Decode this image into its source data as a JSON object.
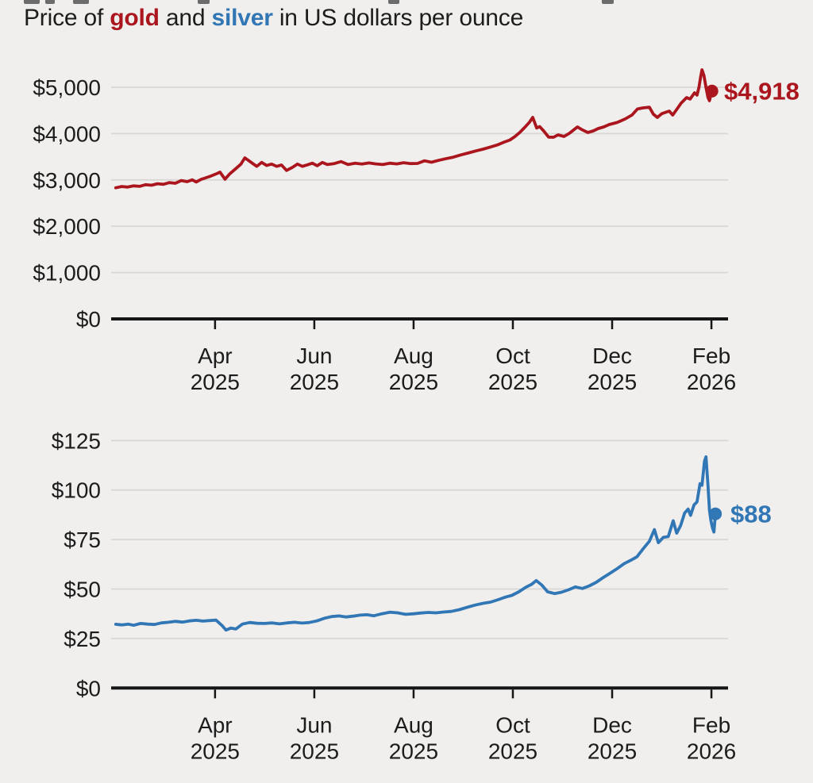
{
  "title": {
    "prefix": "Price of ",
    "gold_word": "gold",
    "connector": " and ",
    "silver_word": "silver",
    "suffix": " in US dollars per ounce"
  },
  "chart_data": [
    {
      "type": "line",
      "name": "gold-price",
      "series_label": "gold",
      "color": "#ab161e",
      "end_label": "$4,918",
      "end_value": 4918,
      "x_unit": "months since Feb 2025",
      "x_range_plotted": [
        "Feb 2025",
        "Feb 2026"
      ],
      "ylim": [
        0,
        5500
      ],
      "grid": true,
      "legend": "none",
      "y_ticks": [
        {
          "label": "$5,000",
          "value": 5000
        },
        {
          "label": "$4,000",
          "value": 4000
        },
        {
          "label": "$3,000",
          "value": 3000
        },
        {
          "label": "$2,000",
          "value": 2000
        },
        {
          "label": "$1,000",
          "value": 1000
        },
        {
          "label": "$0",
          "value": 0
        }
      ],
      "x_ticks": [
        {
          "line1": "Apr",
          "line2": "2025",
          "t": 2
        },
        {
          "line1": "Jun",
          "line2": "2025",
          "t": 4
        },
        {
          "line1": "Aug",
          "line2": "2025",
          "t": 6
        },
        {
          "line1": "Oct",
          "line2": "2025",
          "t": 8
        },
        {
          "line1": "Dec",
          "line2": "2025",
          "t": 10
        },
        {
          "line1": "Feb",
          "line2": "2026",
          "t": 12
        }
      ],
      "points": [
        [
          0.0,
          2830
        ],
        [
          0.12,
          2858
        ],
        [
          0.24,
          2846
        ],
        [
          0.36,
          2872
        ],
        [
          0.48,
          2862
        ],
        [
          0.6,
          2898
        ],
        [
          0.72,
          2886
        ],
        [
          0.84,
          2918
        ],
        [
          0.96,
          2905
        ],
        [
          1.08,
          2942
        ],
        [
          1.2,
          2928
        ],
        [
          1.32,
          2986
        ],
        [
          1.44,
          2962
        ],
        [
          1.54,
          3002
        ],
        [
          1.62,
          2956
        ],
        [
          1.72,
          3012
        ],
        [
          1.82,
          3048
        ],
        [
          1.92,
          3085
        ],
        [
          2.02,
          3128
        ],
        [
          2.1,
          3167
        ],
        [
          2.2,
          3015
        ],
        [
          2.3,
          3135
        ],
        [
          2.42,
          3245
        ],
        [
          2.52,
          3340
        ],
        [
          2.6,
          3476
        ],
        [
          2.68,
          3415
        ],
        [
          2.76,
          3352
        ],
        [
          2.84,
          3292
        ],
        [
          2.94,
          3378
        ],
        [
          3.04,
          3312
        ],
        [
          3.14,
          3342
        ],
        [
          3.24,
          3292
        ],
        [
          3.34,
          3322
        ],
        [
          3.44,
          3205
        ],
        [
          3.56,
          3272
        ],
        [
          3.66,
          3342
        ],
        [
          3.76,
          3292
        ],
        [
          3.86,
          3326
        ],
        [
          3.96,
          3362
        ],
        [
          4.06,
          3306
        ],
        [
          4.16,
          3376
        ],
        [
          4.26,
          3332
        ],
        [
          4.4,
          3352
        ],
        [
          4.54,
          3396
        ],
        [
          4.68,
          3332
        ],
        [
          4.82,
          3362
        ],
        [
          4.96,
          3342
        ],
        [
          5.1,
          3366
        ],
        [
          5.24,
          3346
        ],
        [
          5.38,
          3332
        ],
        [
          5.52,
          3362
        ],
        [
          5.66,
          3346
        ],
        [
          5.8,
          3372
        ],
        [
          5.94,
          3352
        ],
        [
          6.08,
          3356
        ],
        [
          6.22,
          3412
        ],
        [
          6.36,
          3382
        ],
        [
          6.5,
          3422
        ],
        [
          6.64,
          3456
        ],
        [
          6.8,
          3492
        ],
        [
          6.95,
          3540
        ],
        [
          7.1,
          3580
        ],
        [
          7.25,
          3625
        ],
        [
          7.4,
          3665
        ],
        [
          7.55,
          3710
        ],
        [
          7.7,
          3760
        ],
        [
          7.82,
          3815
        ],
        [
          7.94,
          3862
        ],
        [
          8.04,
          3935
        ],
        [
          8.14,
          4025
        ],
        [
          8.24,
          4135
        ],
        [
          8.33,
          4240
        ],
        [
          8.4,
          4349
        ],
        [
          8.48,
          4120
        ],
        [
          8.54,
          4150
        ],
        [
          8.62,
          4060
        ],
        [
          8.72,
          3925
        ],
        [
          8.82,
          3921
        ],
        [
          8.91,
          3973
        ],
        [
          9.03,
          3938
        ],
        [
          9.14,
          4007
        ],
        [
          9.3,
          4144
        ],
        [
          9.4,
          4080
        ],
        [
          9.51,
          4024
        ],
        [
          9.62,
          4058
        ],
        [
          9.72,
          4110
        ],
        [
          9.83,
          4144
        ],
        [
          9.94,
          4195
        ],
        [
          10.1,
          4240
        ],
        [
          10.26,
          4315
        ],
        [
          10.4,
          4400
        ],
        [
          10.51,
          4530
        ],
        [
          10.62,
          4555
        ],
        [
          10.75,
          4571
        ],
        [
          10.83,
          4420
        ],
        [
          10.91,
          4349
        ],
        [
          11.0,
          4430
        ],
        [
          11.15,
          4486
        ],
        [
          11.22,
          4401
        ],
        [
          11.32,
          4550
        ],
        [
          11.39,
          4657
        ],
        [
          11.5,
          4777
        ],
        [
          11.57,
          4745
        ],
        [
          11.66,
          4880
        ],
        [
          11.71,
          4830
        ],
        [
          11.75,
          5000
        ],
        [
          11.78,
          5205
        ],
        [
          11.81,
          5377
        ],
        [
          11.85,
          5250
        ],
        [
          11.89,
          5000
        ],
        [
          11.93,
          4780
        ],
        [
          11.96,
          4710
        ],
        [
          12.01,
          4918
        ]
      ]
    },
    {
      "type": "line",
      "name": "silver-price",
      "series_label": "silver",
      "color": "#3176b5",
      "end_label": "$88",
      "end_value": 88,
      "x_unit": "months since Feb 2025",
      "x_range_plotted": [
        "Feb 2025",
        "Feb 2026"
      ],
      "ylim": [
        0,
        125
      ],
      "grid": true,
      "legend": "none",
      "y_ticks": [
        {
          "label": "$125",
          "value": 125
        },
        {
          "label": "$100",
          "value": 100
        },
        {
          "label": "$75",
          "value": 75
        },
        {
          "label": "$50",
          "value": 50
        },
        {
          "label": "$25",
          "value": 25
        },
        {
          "label": "$0",
          "value": 0
        }
      ],
      "x_ticks": [
        {
          "line1": "Apr",
          "line2": "2025",
          "t": 2
        },
        {
          "line1": "Jun",
          "line2": "2025",
          "t": 4
        },
        {
          "line1": "Aug",
          "line2": "2025",
          "t": 6
        },
        {
          "line1": "Oct",
          "line2": "2025",
          "t": 8
        },
        {
          "line1": "Dec",
          "line2": "2025",
          "t": 10
        },
        {
          "line1": "Feb",
          "line2": "2026",
          "t": 12
        }
      ],
      "points": [
        [
          0.0,
          32.2
        ],
        [
          0.12,
          31.9
        ],
        [
          0.25,
          32.3
        ],
        [
          0.36,
          31.7
        ],
        [
          0.5,
          32.6
        ],
        [
          0.64,
          32.3
        ],
        [
          0.78,
          32.1
        ],
        [
          0.92,
          32.9
        ],
        [
          1.06,
          33.2
        ],
        [
          1.2,
          33.7
        ],
        [
          1.34,
          33.3
        ],
        [
          1.48,
          33.9
        ],
        [
          1.62,
          34.2
        ],
        [
          1.76,
          33.8
        ],
        [
          1.9,
          34.1
        ],
        [
          2.02,
          34.3
        ],
        [
          2.14,
          31.6
        ],
        [
          2.22,
          29.3
        ],
        [
          2.32,
          30.3
        ],
        [
          2.42,
          29.8
        ],
        [
          2.55,
          32.3
        ],
        [
          2.7,
          33.1
        ],
        [
          2.85,
          32.7
        ],
        [
          3.0,
          32.6
        ],
        [
          3.15,
          32.9
        ],
        [
          3.3,
          32.4
        ],
        [
          3.45,
          32.9
        ],
        [
          3.6,
          33.2
        ],
        [
          3.75,
          32.8
        ],
        [
          3.9,
          33.1
        ],
        [
          4.05,
          33.9
        ],
        [
          4.2,
          35.2
        ],
        [
          4.35,
          36.1
        ],
        [
          4.5,
          36.4
        ],
        [
          4.64,
          35.9
        ],
        [
          4.78,
          36.3
        ],
        [
          4.92,
          36.8
        ],
        [
          5.06,
          37.0
        ],
        [
          5.2,
          36.5
        ],
        [
          5.36,
          37.5
        ],
        [
          5.52,
          38.3
        ],
        [
          5.68,
          38.0
        ],
        [
          5.84,
          37.2
        ],
        [
          6.0,
          37.5
        ],
        [
          6.15,
          37.9
        ],
        [
          6.3,
          38.2
        ],
        [
          6.45,
          38.0
        ],
        [
          6.6,
          38.4
        ],
        [
          6.76,
          38.7
        ],
        [
          6.92,
          39.6
        ],
        [
          7.08,
          40.8
        ],
        [
          7.24,
          41.9
        ],
        [
          7.4,
          42.8
        ],
        [
          7.55,
          43.4
        ],
        [
          7.7,
          44.6
        ],
        [
          7.85,
          45.9
        ],
        [
          7.98,
          46.8
        ],
        [
          8.12,
          48.6
        ],
        [
          8.26,
          50.9
        ],
        [
          8.38,
          52.4
        ],
        [
          8.47,
          54.3
        ],
        [
          8.58,
          52.1
        ],
        [
          8.7,
          48.6
        ],
        [
          8.84,
          47.7
        ],
        [
          8.98,
          48.4
        ],
        [
          9.12,
          49.6
        ],
        [
          9.26,
          51.1
        ],
        [
          9.4,
          50.3
        ],
        [
          9.54,
          51.6
        ],
        [
          9.68,
          53.4
        ],
        [
          9.82,
          55.8
        ],
        [
          9.96,
          58.0
        ],
        [
          10.1,
          60.3
        ],
        [
          10.24,
          62.8
        ],
        [
          10.38,
          64.6
        ],
        [
          10.5,
          66.3
        ],
        [
          10.62,
          70.2
        ],
        [
          10.75,
          74.1
        ],
        [
          10.85,
          80.0
        ],
        [
          10.93,
          73.4
        ],
        [
          11.03,
          76.1
        ],
        [
          11.13,
          76.5
        ],
        [
          11.23,
          84.5
        ],
        [
          11.3,
          78.2
        ],
        [
          11.38,
          82.1
        ],
        [
          11.46,
          88.4
        ],
        [
          11.53,
          90.4
        ],
        [
          11.58,
          87.2
        ],
        [
          11.65,
          92.5
        ],
        [
          11.71,
          94.0
        ],
        [
          11.77,
          103.2
        ],
        [
          11.81,
          102.4
        ],
        [
          11.86,
          114.5
        ],
        [
          11.89,
          116.8
        ],
        [
          11.93,
          102.5
        ],
        [
          11.96,
          89.8
        ],
        [
          11.99,
          84.6
        ],
        [
          12.02,
          81.0
        ],
        [
          12.05,
          78.8
        ],
        [
          12.08,
          88.0
        ]
      ]
    }
  ]
}
